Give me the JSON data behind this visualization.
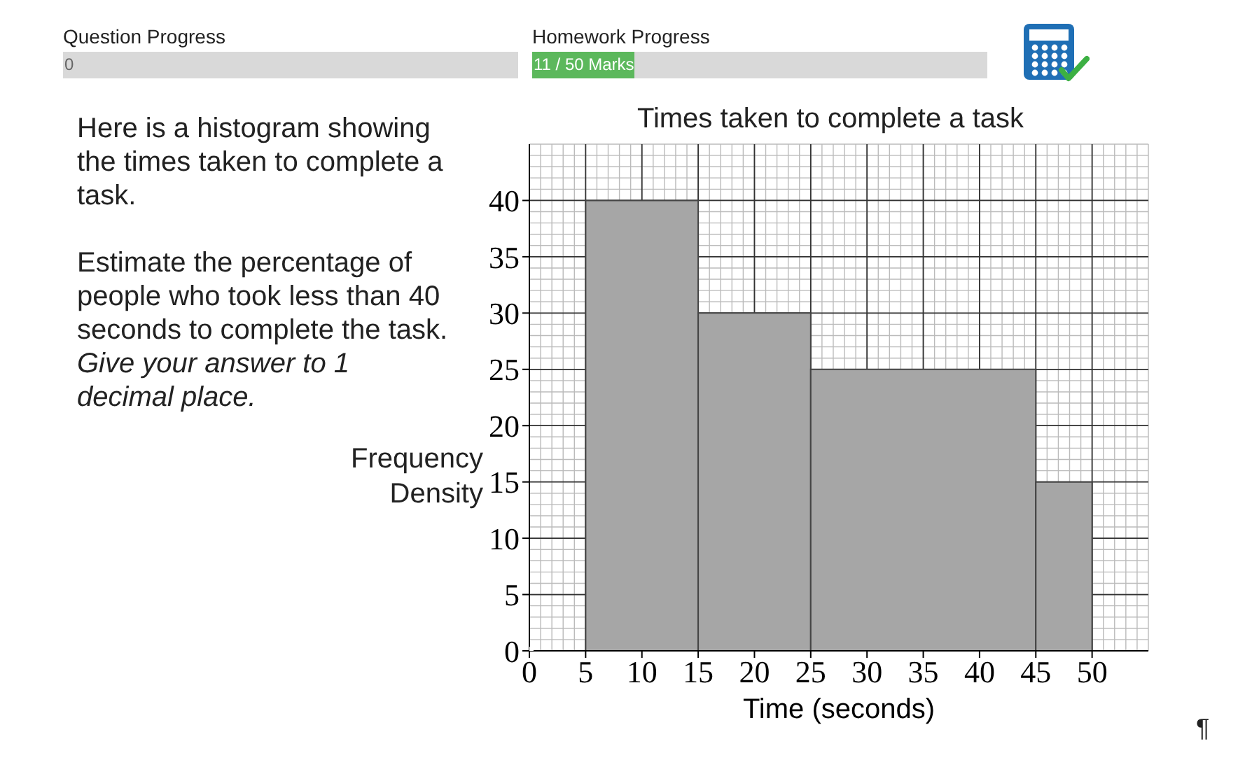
{
  "chart_data": {
    "type": "histogram",
    "title": "Times taken to complete a task",
    "xlabel": "Time (seconds)",
    "ylabel": "Frequency Density",
    "bins": [
      5,
      15,
      25,
      45,
      50
    ],
    "values": [
      40,
      30,
      25,
      15
    ],
    "color": "#a6a6a6",
    "xlim": [
      0,
      55
    ],
    "xticks": [
      0,
      5,
      10,
      15,
      20,
      25,
      30,
      35,
      40,
      45,
      50
    ],
    "ylim": [
      0,
      45
    ],
    "yticks": [
      0,
      5,
      10,
      15,
      20,
      25,
      30,
      35,
      40
    ],
    "grid": true,
    "annotations": [
      "Question Progress",
      "0",
      "Homework Progress",
      "11 / 50 Marks",
      "Here is a histogram showing the times taken to complete a task.",
      "Estimate the percentage of people who took less than 40 seconds to complete the task.",
      "Give your answer to 1 decimal place.",
      "¶"
    ]
  }
}
